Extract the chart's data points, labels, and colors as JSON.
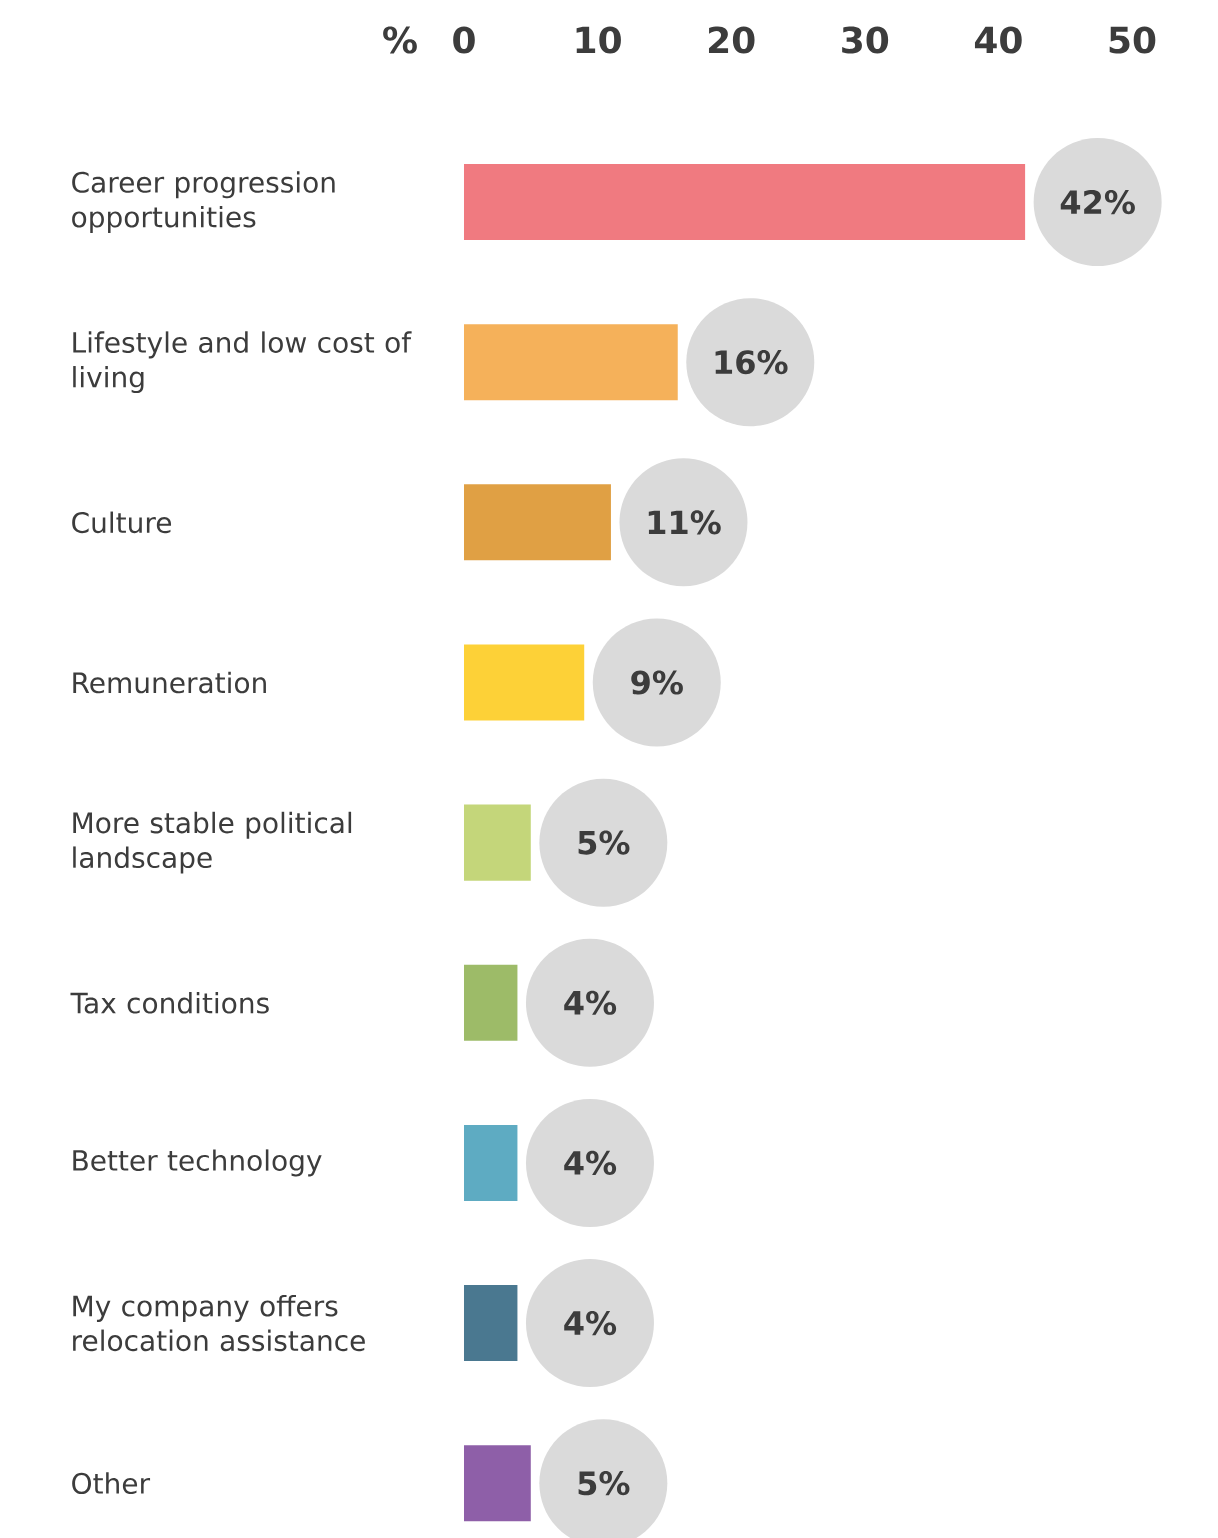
{
  "chart_data": {
    "type": "bar",
    "orientation": "horizontal",
    "xlabel": "%",
    "categories": [
      "Career progression opportunities",
      "Lifestyle and low cost of living",
      "Culture",
      "Remuneration",
      "More stable political landscape",
      "Tax conditions",
      "Better technology",
      "My company offers relocation assistance",
      "Other"
    ],
    "values": [
      42,
      16,
      11,
      9,
      5,
      4,
      4,
      4,
      5
    ],
    "value_labels": [
      "42%",
      "16%",
      "11%",
      "9%",
      "5%",
      "4%",
      "4%",
      "4%",
      "5%"
    ],
    "colors": [
      "#f07a80",
      "#f5b15a",
      "#e0a044",
      "#fdd137",
      "#c4d67a",
      "#9dbb68",
      "#5eabc2",
      "#4a7890",
      "#8e5fa8"
    ],
    "xlim": [
      0,
      50
    ],
    "xticks": [
      0,
      10,
      20,
      30,
      40,
      50
    ]
  }
}
